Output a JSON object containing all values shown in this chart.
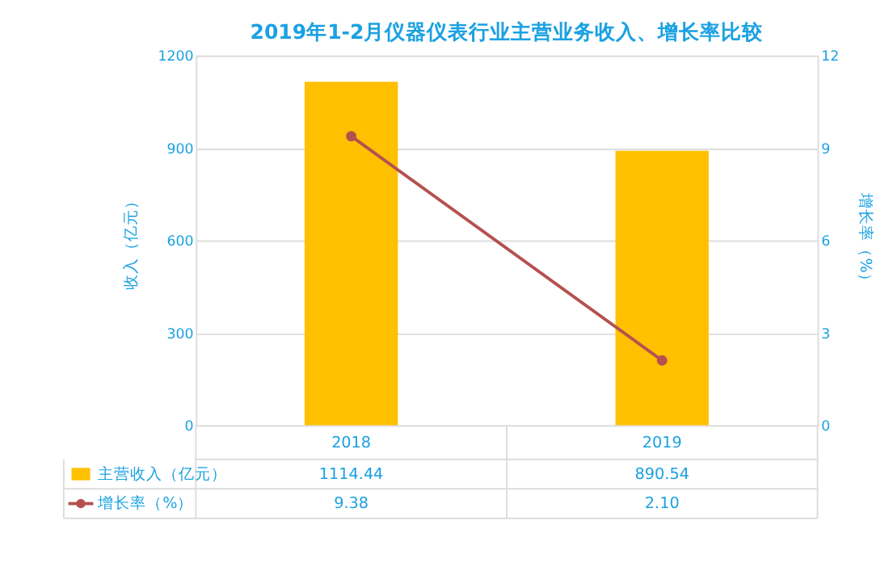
{
  "chart_data": {
    "type": "bar",
    "title": "2019年1-2月仪器仪表行业主营业务收入、增长率比较",
    "categories": [
      "2018",
      "2019"
    ],
    "series": [
      {
        "name": "主营收入（亿元）",
        "color": "#ffc000",
        "values": [
          1114.44,
          890.54
        ],
        "value_labels": [
          "1114.44",
          "890.54"
        ]
      },
      {
        "name": "增长率（%）",
        "type": "line",
        "axis": "y2",
        "color": "#b5504f",
        "values": [
          9.38,
          2.1
        ],
        "value_labels": [
          "9.38",
          "2.10"
        ]
      }
    ],
    "ylabel": "收入（亿元）",
    "y2label": "增长率（%）",
    "ylim": [
      0,
      1200
    ],
    "yticks": [
      0,
      300,
      600,
      900,
      1200
    ],
    "y2lim": [
      0,
      12
    ],
    "y2ticks": [
      0,
      3,
      6,
      9,
      12
    ],
    "grid": "y",
    "legend": "bottom",
    "marker": "circle",
    "line_style": "solid"
  }
}
